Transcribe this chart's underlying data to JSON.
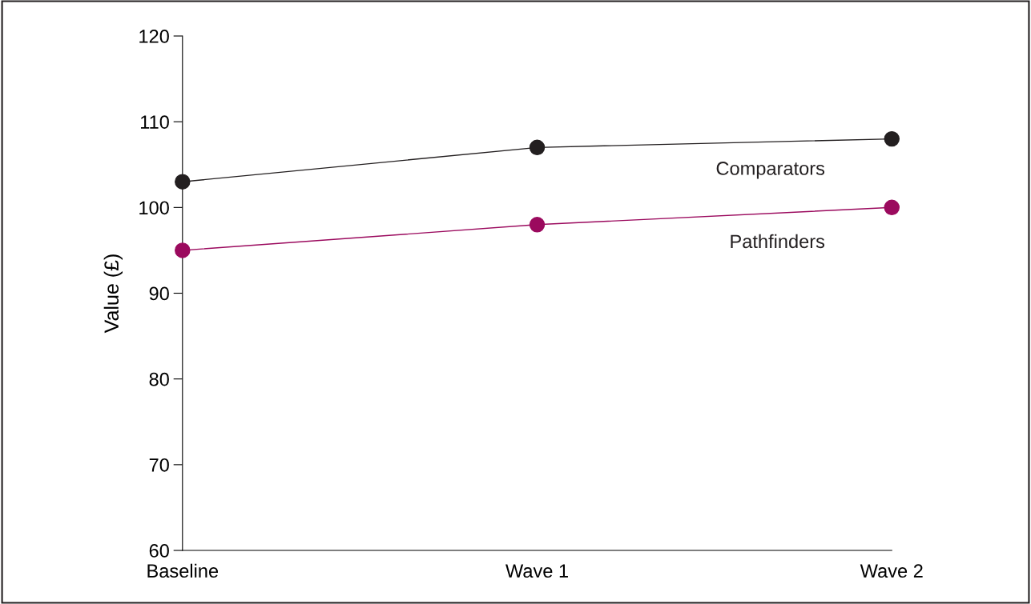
{
  "chart_data": {
    "type": "line",
    "ylabel": "Value (£)",
    "categories": [
      "Baseline",
      "Wave 1",
      "Wave 2"
    ],
    "series": [
      {
        "name": "Comparators",
        "color": "#231f20",
        "values": [
          103,
          107,
          108
        ]
      },
      {
        "name": "Pathfinders",
        "color": "#9b0a5e",
        "values": [
          95,
          98,
          100
        ]
      }
    ],
    "ylim": [
      60,
      120
    ],
    "yticks": [
      60,
      70,
      80,
      90,
      100,
      110,
      120
    ],
    "grid": false,
    "legend": false,
    "marker": "circle",
    "line_style": "solid"
  }
}
